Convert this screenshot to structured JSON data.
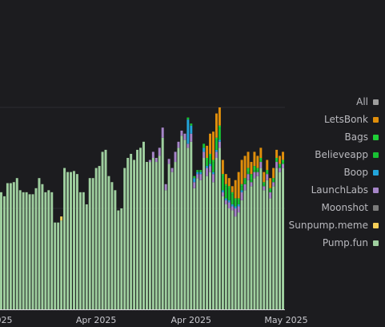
{
  "colors": {
    "background": "#1c1c1f",
    "grid": "#2c2c31",
    "axis": "#d8d8dc",
    "All": "#9e9e9e",
    "LetsBonk": "#e08e0b",
    "Bags": "#1fcf37",
    "Believeapp": "#18c033",
    "Boop": "#22a4da",
    "LaunchLabs": "#a685c8",
    "Moonshot": "#7b7b7b",
    "Sunpump.meme": "#f6cf58",
    "Pump.fun": "#9fcf9f"
  },
  "legend": {
    "items": [
      {
        "label": "All",
        "color": "#9e9e9e"
      },
      {
        "label": "LetsBonk",
        "color": "#e08e0b"
      },
      {
        "label": "Bags",
        "color": "#1fcf37"
      },
      {
        "label": "Believeapp",
        "color": "#18c033"
      },
      {
        "label": "Boop",
        "color": "#22a4da"
      },
      {
        "label": "LaunchLabs",
        "color": "#a685c8"
      },
      {
        "label": "Moonshot",
        "color": "#7b7b7b"
      },
      {
        "label": "Sunpump.meme",
        "color": "#f6cf58"
      },
      {
        "label": "Pump.fun",
        "color": "#9fcf9f"
      }
    ]
  },
  "chart_data": {
    "type": "bar",
    "stacked": true,
    "title": "",
    "xlabel": "",
    "ylabel": "",
    "ylim": [
      0,
      300
    ],
    "grid": true,
    "legend_position": "right",
    "x_tick_labels": [
      {
        "label": "2025",
        "index": 0
      },
      {
        "label": "Apr 2025",
        "index": 30
      },
      {
        "label": "Apr 2025",
        "index": 60
      },
      {
        "label": "May 2025",
        "index": 90
      }
    ],
    "series": [
      {
        "name": "Pump.fun",
        "color": "#9fcf9f",
        "values": [
          116,
          112,
          125,
          125,
          126,
          130,
          118,
          116,
          116,
          114,
          114,
          120,
          130,
          124,
          116,
          118,
          116,
          86,
          86,
          88,
          140,
          136,
          136,
          137,
          134,
          116,
          116,
          104,
          130,
          130,
          140,
          142,
          156,
          158,
          132,
          126,
          118,
          98,
          100,
          140,
          150,
          154,
          148,
          158,
          160,
          166,
          146,
          146,
          150,
          146,
          152,
          170,
          118,
          144,
          136,
          146,
          160,
          172,
          168,
          160,
          166,
          120,
          130,
          128,
          150,
          132,
          136,
          126,
          150,
          160,
          112,
          104,
          100,
          98,
          92,
          96,
          108,
          118,
          128,
          122,
          130,
          132,
          140,
          118,
          128,
          110,
          122,
          140,
          136,
          140
        ]
      },
      {
        "name": "Sunpump.meme",
        "color": "#f6cf58",
        "values": [
          0,
          0,
          0,
          0,
          0,
          0,
          0,
          0,
          0,
          0,
          0,
          0,
          0,
          0,
          0,
          0,
          0,
          0,
          0,
          4,
          0,
          0,
          0,
          0,
          0,
          0,
          0,
          0,
          0,
          0,
          0,
          0,
          0,
          0,
          0,
          0,
          0,
          0,
          0,
          0,
          0,
          0,
          0,
          0,
          0,
          0,
          0,
          0,
          0,
          0,
          0,
          0,
          0,
          0,
          0,
          0,
          0,
          0,
          0,
          0,
          0,
          0,
          0,
          0,
          0,
          0,
          0,
          0,
          0,
          0,
          0,
          0,
          0,
          0,
          0,
          0,
          0,
          0,
          0,
          0,
          0,
          0,
          0,
          0,
          0,
          0,
          0,
          0,
          0,
          0
        ]
      },
      {
        "name": "Moonshot",
        "color": "#7b7b7b",
        "values": [
          0,
          0,
          0,
          0,
          0,
          0,
          0,
          0,
          0,
          0,
          0,
          0,
          0,
          0,
          0,
          0,
          0,
          0,
          0,
          0,
          0,
          0,
          0,
          0,
          0,
          0,
          0,
          0,
          0,
          0,
          0,
          0,
          0,
          0,
          0,
          0,
          0,
          0,
          0,
          0,
          0,
          0,
          0,
          0,
          0,
          0,
          0,
          0,
          0,
          0,
          0,
          0,
          0,
          0,
          0,
          0,
          0,
          0,
          0,
          0,
          0,
          0,
          0,
          0,
          0,
          0,
          0,
          0,
          0,
          0,
          0,
          0,
          0,
          0,
          0,
          0,
          0,
          0,
          0,
          0,
          0,
          0,
          0,
          0,
          0,
          0,
          0,
          0,
          0,
          0
        ]
      },
      {
        "name": "LaunchLabs",
        "color": "#a685c8",
        "values": [
          0,
          0,
          0,
          0,
          0,
          0,
          0,
          0,
          0,
          0,
          0,
          0,
          0,
          0,
          0,
          0,
          0,
          0,
          0,
          0,
          0,
          0,
          0,
          0,
          0,
          0,
          0,
          0,
          0,
          0,
          0,
          0,
          0,
          0,
          0,
          0,
          0,
          0,
          0,
          0,
          0,
          0,
          0,
          0,
          0,
          0,
          0,
          2,
          6,
          4,
          8,
          10,
          6,
          5,
          4,
          10,
          6,
          5,
          6,
          4,
          8,
          6,
          4,
          6,
          6,
          8,
          6,
          8,
          6,
          6,
          4,
          4,
          6,
          4,
          8,
          6,
          8,
          6,
          6,
          4,
          6,
          4,
          6,
          4,
          6,
          6,
          4,
          6,
          4,
          4
        ]
      },
      {
        "name": "Boop",
        "color": "#22a4da",
        "values": [
          0,
          0,
          0,
          0,
          0,
          0,
          0,
          0,
          0,
          0,
          0,
          0,
          0,
          0,
          0,
          0,
          0,
          0,
          0,
          0,
          0,
          0,
          0,
          0,
          0,
          0,
          0,
          0,
          0,
          0,
          0,
          0,
          0,
          0,
          0,
          0,
          0,
          0,
          0,
          0,
          0,
          0,
          0,
          0,
          0,
          0,
          0,
          0,
          0,
          0,
          0,
          0,
          0,
          0,
          0,
          0,
          0,
          0,
          0,
          24,
          8,
          4,
          2,
          2,
          4,
          2,
          2,
          2,
          2,
          2,
          2,
          2,
          2,
          2,
          2,
          2,
          2,
          0,
          0,
          0,
          0,
          0,
          0,
          0,
          0,
          0,
          0,
          0,
          0,
          0
        ]
      },
      {
        "name": "Believeapp",
        "color": "#18c033",
        "values": [
          0,
          0,
          0,
          0,
          0,
          0,
          0,
          0,
          0,
          0,
          0,
          0,
          0,
          0,
          0,
          0,
          0,
          0,
          0,
          0,
          0,
          0,
          0,
          0,
          0,
          0,
          0,
          0,
          0,
          0,
          0,
          0,
          0,
          0,
          0,
          0,
          0,
          0,
          0,
          0,
          0,
          0,
          0,
          0,
          0,
          0,
          0,
          0,
          0,
          0,
          0,
          0,
          0,
          0,
          0,
          0,
          0,
          0,
          0,
          2,
          2,
          2,
          2,
          2,
          4,
          6,
          8,
          10,
          10,
          12,
          14,
          12,
          12,
          10,
          6,
          4,
          4,
          4,
          2,
          2,
          2,
          2,
          2,
          2,
          2,
          2,
          2,
          2,
          2,
          2
        ]
      },
      {
        "name": "Bags",
        "color": "#1fcf37",
        "values": [
          0,
          0,
          0,
          0,
          0,
          0,
          0,
          0,
          0,
          0,
          0,
          0,
          0,
          0,
          0,
          0,
          0,
          0,
          0,
          0,
          0,
          0,
          0,
          0,
          0,
          0,
          0,
          0,
          0,
          0,
          0,
          0,
          0,
          0,
          0,
          0,
          0,
          0,
          0,
          0,
          0,
          0,
          0,
          0,
          0,
          0,
          0,
          0,
          0,
          0,
          0,
          0,
          0,
          0,
          0,
          0,
          0,
          0,
          0,
          0,
          0,
          0,
          0,
          0,
          0,
          2,
          2,
          2,
          2,
          2,
          2,
          2,
          2,
          2,
          2,
          2,
          2,
          2,
          4,
          6,
          4,
          2,
          2,
          2,
          2,
          2,
          2,
          2,
          2,
          2
        ]
      },
      {
        "name": "LetsBonk",
        "color": "#e08e0b",
        "values": [
          0,
          0,
          0,
          0,
          0,
          0,
          0,
          0,
          0,
          0,
          0,
          0,
          0,
          0,
          0,
          0,
          0,
          0,
          0,
          0,
          0,
          0,
          0,
          0,
          0,
          0,
          0,
          0,
          0,
          0,
          0,
          0,
          0,
          0,
          0,
          0,
          0,
          0,
          0,
          0,
          0,
          0,
          0,
          0,
          0,
          0,
          0,
          0,
          0,
          0,
          0,
          0,
          0,
          0,
          0,
          0,
          0,
          0,
          0,
          0,
          0,
          0,
          0,
          0,
          0,
          12,
          20,
          28,
          24,
          18,
          14,
          10,
          8,
          6,
          18,
          26,
          24,
          22,
          16,
          12,
          14,
          12,
          10,
          10,
          10,
          10,
          10,
          8,
          8,
          8
        ]
      }
    ]
  }
}
